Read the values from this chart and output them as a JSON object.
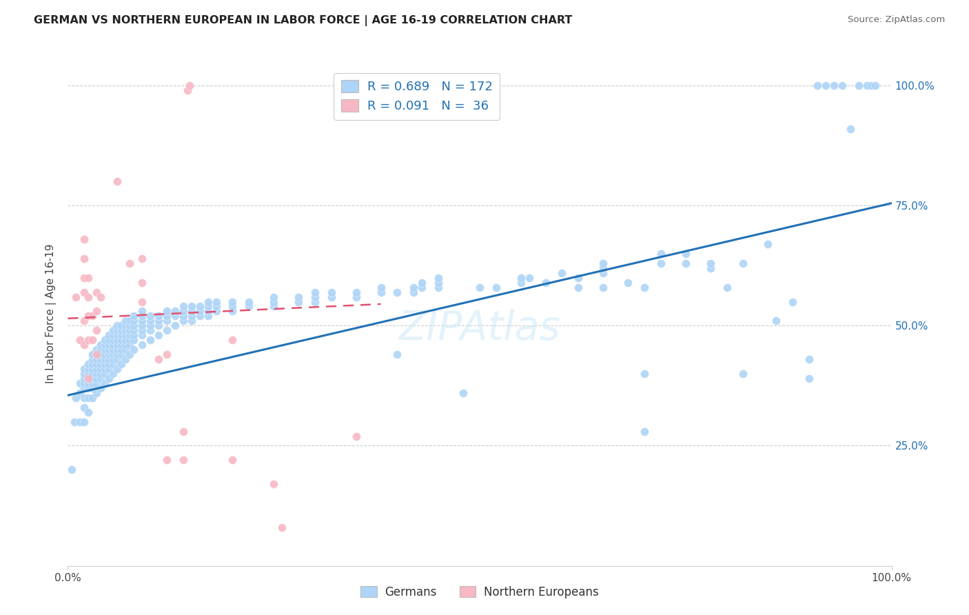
{
  "title": "GERMAN VS NORTHERN EUROPEAN IN LABOR FORCE | AGE 16-19 CORRELATION CHART",
  "source": "Source: ZipAtlas.com",
  "ylabel": "In Labor Force | Age 16-19",
  "blue_R": 0.689,
  "blue_N": 172,
  "pink_R": 0.091,
  "pink_N": 36,
  "blue_color": "#aed4f7",
  "pink_color": "#f7b8c4",
  "blue_line_color": "#2171b5",
  "pink_line_color": "#e05070",
  "legend_label_blue": "Germans",
  "legend_label_pink": "Northern Europeans",
  "blue_scatter": [
    [
      0.005,
      0.2
    ],
    [
      0.008,
      0.3
    ],
    [
      0.01,
      0.35
    ],
    [
      0.015,
      0.3
    ],
    [
      0.015,
      0.36
    ],
    [
      0.015,
      0.38
    ],
    [
      0.02,
      0.3
    ],
    [
      0.02,
      0.33
    ],
    [
      0.02,
      0.35
    ],
    [
      0.02,
      0.37
    ],
    [
      0.02,
      0.38
    ],
    [
      0.02,
      0.39
    ],
    [
      0.02,
      0.4
    ],
    [
      0.02,
      0.41
    ],
    [
      0.025,
      0.32
    ],
    [
      0.025,
      0.35
    ],
    [
      0.025,
      0.37
    ],
    [
      0.025,
      0.38
    ],
    [
      0.025,
      0.39
    ],
    [
      0.025,
      0.4
    ],
    [
      0.025,
      0.41
    ],
    [
      0.025,
      0.42
    ],
    [
      0.03,
      0.35
    ],
    [
      0.03,
      0.37
    ],
    [
      0.03,
      0.38
    ],
    [
      0.03,
      0.39
    ],
    [
      0.03,
      0.4
    ],
    [
      0.03,
      0.41
    ],
    [
      0.03,
      0.42
    ],
    [
      0.03,
      0.43
    ],
    [
      0.03,
      0.44
    ],
    [
      0.035,
      0.36
    ],
    [
      0.035,
      0.38
    ],
    [
      0.035,
      0.39
    ],
    [
      0.035,
      0.4
    ],
    [
      0.035,
      0.41
    ],
    [
      0.035,
      0.42
    ],
    [
      0.035,
      0.43
    ],
    [
      0.035,
      0.44
    ],
    [
      0.035,
      0.45
    ],
    [
      0.04,
      0.37
    ],
    [
      0.04,
      0.39
    ],
    [
      0.04,
      0.4
    ],
    [
      0.04,
      0.41
    ],
    [
      0.04,
      0.42
    ],
    [
      0.04,
      0.43
    ],
    [
      0.04,
      0.44
    ],
    [
      0.04,
      0.45
    ],
    [
      0.04,
      0.46
    ],
    [
      0.045,
      0.38
    ],
    [
      0.045,
      0.4
    ],
    [
      0.045,
      0.41
    ],
    [
      0.045,
      0.42
    ],
    [
      0.045,
      0.43
    ],
    [
      0.045,
      0.44
    ],
    [
      0.045,
      0.45
    ],
    [
      0.045,
      0.46
    ],
    [
      0.045,
      0.47
    ],
    [
      0.05,
      0.39
    ],
    [
      0.05,
      0.41
    ],
    [
      0.05,
      0.42
    ],
    [
      0.05,
      0.43
    ],
    [
      0.05,
      0.44
    ],
    [
      0.05,
      0.45
    ],
    [
      0.05,
      0.46
    ],
    [
      0.05,
      0.47
    ],
    [
      0.05,
      0.48
    ],
    [
      0.055,
      0.4
    ],
    [
      0.055,
      0.42
    ],
    [
      0.055,
      0.43
    ],
    [
      0.055,
      0.44
    ],
    [
      0.055,
      0.45
    ],
    [
      0.055,
      0.46
    ],
    [
      0.055,
      0.47
    ],
    [
      0.055,
      0.48
    ],
    [
      0.055,
      0.49
    ],
    [
      0.06,
      0.41
    ],
    [
      0.06,
      0.43
    ],
    [
      0.06,
      0.44
    ],
    [
      0.06,
      0.45
    ],
    [
      0.06,
      0.46
    ],
    [
      0.06,
      0.47
    ],
    [
      0.06,
      0.48
    ],
    [
      0.06,
      0.49
    ],
    [
      0.06,
      0.5
    ],
    [
      0.065,
      0.42
    ],
    [
      0.065,
      0.44
    ],
    [
      0.065,
      0.45
    ],
    [
      0.065,
      0.46
    ],
    [
      0.065,
      0.47
    ],
    [
      0.065,
      0.48
    ],
    [
      0.065,
      0.49
    ],
    [
      0.065,
      0.5
    ],
    [
      0.07,
      0.43
    ],
    [
      0.07,
      0.45
    ],
    [
      0.07,
      0.46
    ],
    [
      0.07,
      0.47
    ],
    [
      0.07,
      0.48
    ],
    [
      0.07,
      0.49
    ],
    [
      0.07,
      0.5
    ],
    [
      0.07,
      0.51
    ],
    [
      0.075,
      0.44
    ],
    [
      0.075,
      0.46
    ],
    [
      0.075,
      0.47
    ],
    [
      0.075,
      0.48
    ],
    [
      0.075,
      0.49
    ],
    [
      0.075,
      0.5
    ],
    [
      0.075,
      0.51
    ],
    [
      0.08,
      0.45
    ],
    [
      0.08,
      0.47
    ],
    [
      0.08,
      0.48
    ],
    [
      0.08,
      0.49
    ],
    [
      0.08,
      0.5
    ],
    [
      0.08,
      0.51
    ],
    [
      0.08,
      0.52
    ],
    [
      0.09,
      0.46
    ],
    [
      0.09,
      0.48
    ],
    [
      0.09,
      0.49
    ],
    [
      0.09,
      0.5
    ],
    [
      0.09,
      0.51
    ],
    [
      0.09,
      0.52
    ],
    [
      0.09,
      0.53
    ],
    [
      0.1,
      0.47
    ],
    [
      0.1,
      0.49
    ],
    [
      0.1,
      0.5
    ],
    [
      0.1,
      0.51
    ],
    [
      0.1,
      0.52
    ],
    [
      0.11,
      0.48
    ],
    [
      0.11,
      0.5
    ],
    [
      0.11,
      0.51
    ],
    [
      0.11,
      0.52
    ],
    [
      0.12,
      0.49
    ],
    [
      0.12,
      0.51
    ],
    [
      0.12,
      0.52
    ],
    [
      0.12,
      0.53
    ],
    [
      0.13,
      0.5
    ],
    [
      0.13,
      0.52
    ],
    [
      0.13,
      0.53
    ],
    [
      0.14,
      0.51
    ],
    [
      0.14,
      0.52
    ],
    [
      0.14,
      0.53
    ],
    [
      0.14,
      0.54
    ],
    [
      0.15,
      0.51
    ],
    [
      0.15,
      0.52
    ],
    [
      0.15,
      0.53
    ],
    [
      0.15,
      0.54
    ],
    [
      0.16,
      0.52
    ],
    [
      0.16,
      0.53
    ],
    [
      0.16,
      0.54
    ],
    [
      0.17,
      0.52
    ],
    [
      0.17,
      0.53
    ],
    [
      0.17,
      0.54
    ],
    [
      0.17,
      0.55
    ],
    [
      0.18,
      0.53
    ],
    [
      0.18,
      0.54
    ],
    [
      0.18,
      0.55
    ],
    [
      0.2,
      0.53
    ],
    [
      0.2,
      0.54
    ],
    [
      0.2,
      0.55
    ],
    [
      0.22,
      0.54
    ],
    [
      0.22,
      0.55
    ],
    [
      0.25,
      0.54
    ],
    [
      0.25,
      0.55
    ],
    [
      0.25,
      0.56
    ],
    [
      0.28,
      0.55
    ],
    [
      0.28,
      0.56
    ],
    [
      0.3,
      0.55
    ],
    [
      0.3,
      0.56
    ],
    [
      0.3,
      0.57
    ],
    [
      0.32,
      0.56
    ],
    [
      0.32,
      0.57
    ],
    [
      0.35,
      0.56
    ],
    [
      0.35,
      0.57
    ],
    [
      0.38,
      0.57
    ],
    [
      0.38,
      0.58
    ],
    [
      0.4,
      0.44
    ],
    [
      0.4,
      0.57
    ],
    [
      0.42,
      0.57
    ],
    [
      0.42,
      0.58
    ],
    [
      0.43,
      0.58
    ],
    [
      0.43,
      0.59
    ],
    [
      0.45,
      0.58
    ],
    [
      0.45,
      0.59
    ],
    [
      0.45,
      0.6
    ],
    [
      0.48,
      0.36
    ],
    [
      0.5,
      0.58
    ],
    [
      0.52,
      0.58
    ],
    [
      0.55,
      0.59
    ],
    [
      0.55,
      0.6
    ],
    [
      0.56,
      0.6
    ],
    [
      0.58,
      0.59
    ],
    [
      0.6,
      0.61
    ],
    [
      0.62,
      0.58
    ],
    [
      0.62,
      0.6
    ],
    [
      0.65,
      0.58
    ],
    [
      0.65,
      0.61
    ],
    [
      0.65,
      0.62
    ],
    [
      0.65,
      0.63
    ],
    [
      0.68,
      0.59
    ],
    [
      0.7,
      0.28
    ],
    [
      0.7,
      0.4
    ],
    [
      0.7,
      0.58
    ],
    [
      0.72,
      0.63
    ],
    [
      0.72,
      0.65
    ],
    [
      0.75,
      0.63
    ],
    [
      0.75,
      0.65
    ],
    [
      0.78,
      0.62
    ],
    [
      0.78,
      0.63
    ],
    [
      0.8,
      0.58
    ],
    [
      0.82,
      0.4
    ],
    [
      0.82,
      0.63
    ],
    [
      0.85,
      0.67
    ],
    [
      0.86,
      0.51
    ],
    [
      0.88,
      0.55
    ],
    [
      0.9,
      0.39
    ],
    [
      0.9,
      0.43
    ],
    [
      0.91,
      1.0
    ],
    [
      0.92,
      1.0
    ],
    [
      0.93,
      1.0
    ],
    [
      0.94,
      1.0
    ],
    [
      0.95,
      0.91
    ],
    [
      0.96,
      1.0
    ],
    [
      0.97,
      1.0
    ],
    [
      0.975,
      1.0
    ],
    [
      0.98,
      1.0
    ]
  ],
  "pink_scatter": [
    [
      0.01,
      0.56
    ],
    [
      0.015,
      0.47
    ],
    [
      0.02,
      0.46
    ],
    [
      0.02,
      0.51
    ],
    [
      0.02,
      0.57
    ],
    [
      0.02,
      0.6
    ],
    [
      0.02,
      0.64
    ],
    [
      0.02,
      0.68
    ],
    [
      0.025,
      0.39
    ],
    [
      0.025,
      0.47
    ],
    [
      0.025,
      0.52
    ],
    [
      0.025,
      0.56
    ],
    [
      0.025,
      0.6
    ],
    [
      0.03,
      0.47
    ],
    [
      0.03,
      0.52
    ],
    [
      0.035,
      0.44
    ],
    [
      0.035,
      0.49
    ],
    [
      0.035,
      0.53
    ],
    [
      0.035,
      0.57
    ],
    [
      0.04,
      0.56
    ],
    [
      0.06,
      0.8
    ],
    [
      0.075,
      0.63
    ],
    [
      0.09,
      0.55
    ],
    [
      0.09,
      0.59
    ],
    [
      0.09,
      0.64
    ],
    [
      0.11,
      0.43
    ],
    [
      0.12,
      0.22
    ],
    [
      0.12,
      0.44
    ],
    [
      0.14,
      0.22
    ],
    [
      0.14,
      0.28
    ],
    [
      0.145,
      0.99
    ],
    [
      0.148,
      1.0
    ],
    [
      0.2,
      0.22
    ],
    [
      0.2,
      0.47
    ],
    [
      0.25,
      0.17
    ],
    [
      0.26,
      0.08
    ],
    [
      0.35,
      0.27
    ]
  ],
  "blue_trendline_x": [
    0.0,
    1.0
  ],
  "blue_trendline_y": [
    0.355,
    0.755
  ],
  "pink_trendline_x": [
    0.0,
    0.38
  ],
  "pink_trendline_y": [
    0.515,
    0.545
  ],
  "ytick_positions": [
    0.25,
    0.5,
    0.75,
    1.0
  ],
  "ytick_labels": [
    "25.0%",
    "50.0%",
    "75.0%",
    "100.0%"
  ],
  "xtick_positions": [
    0.0,
    1.0
  ],
  "xtick_labels": [
    "0.0%",
    "100.0%"
  ],
  "ylim": [
    0.0,
    1.05
  ],
  "xlim": [
    0.0,
    1.0
  ]
}
